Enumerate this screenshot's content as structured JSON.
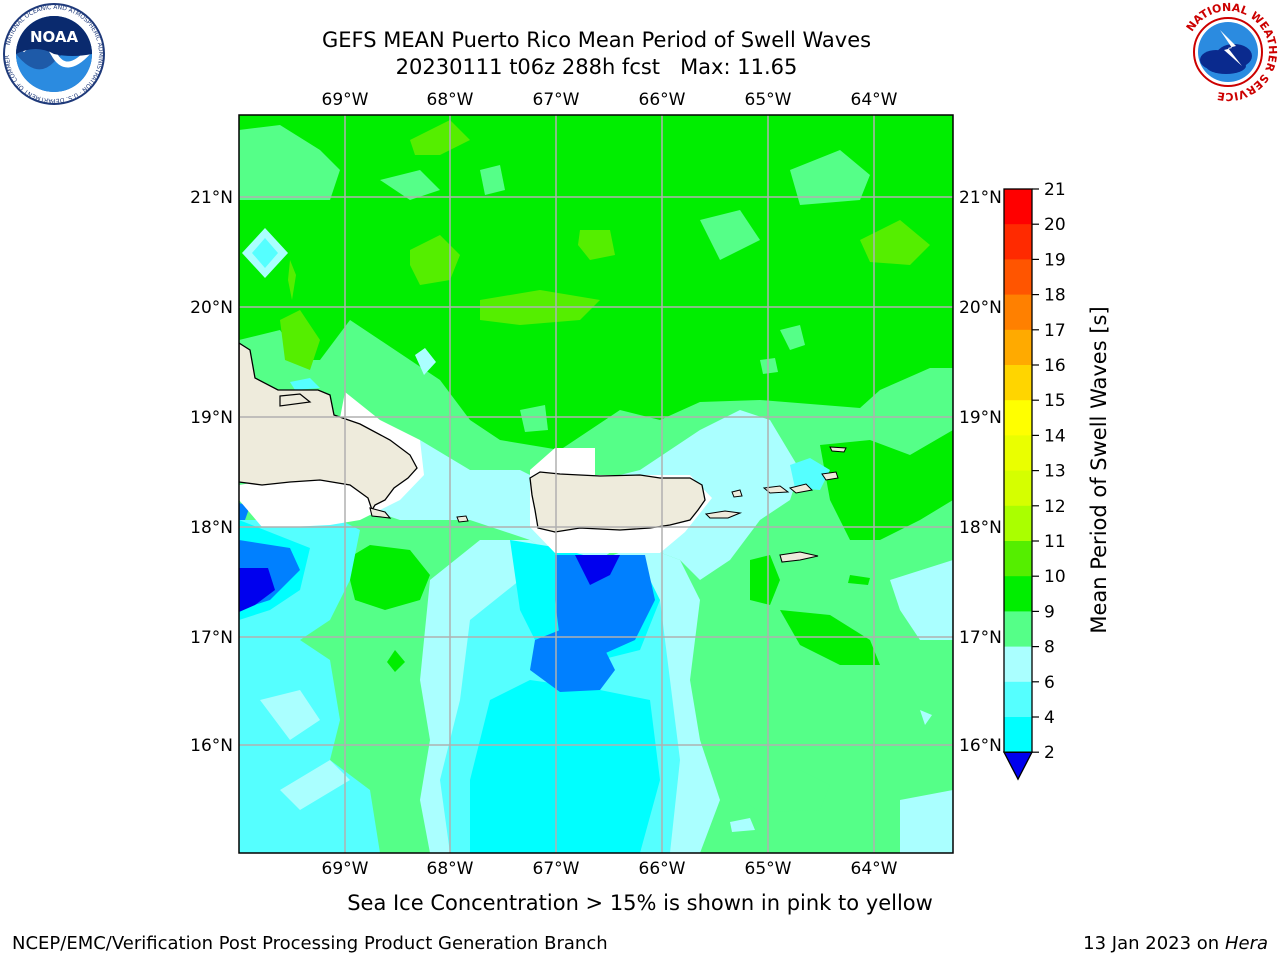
{
  "title": {
    "line1": "GEFS MEAN Puerto Rico Mean Period of Swell Waves",
    "line2": "20230111 t06z 288h fcst   Max: 11.65"
  },
  "logos": {
    "left": "noaa-logo",
    "left_text": "NOAA",
    "left_ring_text": "NATIONAL OCEANIC AND ATMOSPHERIC ADMINISTRATION · U.S. DEPARTMENT OF COMMERCE",
    "right": "nws-logo",
    "right_ring_text": "NATIONAL WEATHER SERVICE"
  },
  "map": {
    "lon_labels": [
      "69°W",
      "68°W",
      "67°W",
      "66°W",
      "65°W",
      "64°W"
    ],
    "lat_labels": [
      "21°N",
      "20°N",
      "19°N",
      "18°N",
      "17°N",
      "16°N"
    ],
    "land_color": "#eeebdc",
    "grid_color": "#b0b0b0"
  },
  "colorbar": {
    "label": "Mean Period of Swell Waves [s]",
    "ticks": [
      "21",
      "20",
      "19",
      "18",
      "17",
      "16",
      "15",
      "14",
      "13",
      "12",
      "11",
      "10",
      "9",
      "8",
      "6",
      "4",
      "2"
    ],
    "colors": [
      "#ff0000",
      "#ff2a00",
      "#ff5500",
      "#ff8000",
      "#ffaa00",
      "#ffd500",
      "#ffff00",
      "#eaff00",
      "#d5ff00",
      "#aaff00",
      "#55ee00",
      "#00ee00",
      "#55ff88",
      "#aaffff",
      "#55ffff",
      "#00ffff",
      "#0080ff",
      "#0000ff"
    ],
    "under_color": "#0000ee"
  },
  "footer": {
    "note": "Sea Ice Concentration > 15% is shown in pink to yellow",
    "left": "NCEP/EMC/Verification Post Processing Product Generation Branch",
    "right_prefix": "13 Jan 2023 on ",
    "right_machine": "Hera"
  }
}
